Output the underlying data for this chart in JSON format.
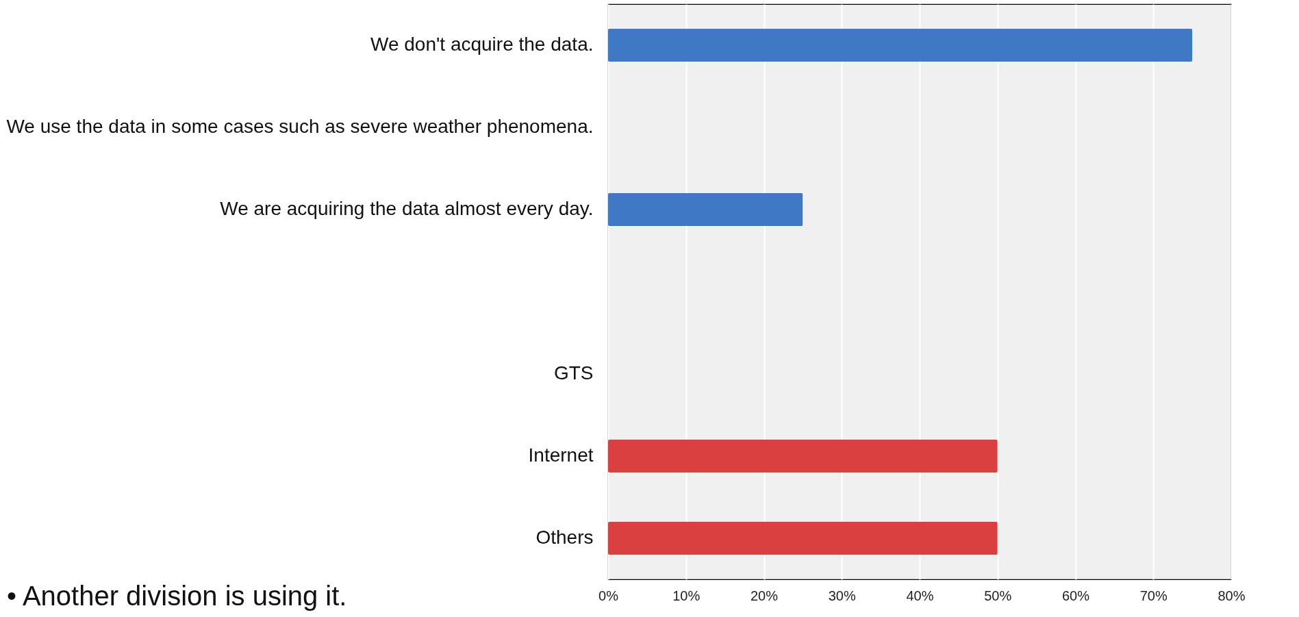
{
  "chart_data": {
    "type": "bar",
    "orientation": "horizontal",
    "categories": [
      "We don't acquire the data.",
      "We use the data in some cases such as severe weather phenomena.",
      "We are acquiring the data almost every day.",
      null,
      "GTS",
      "Internet",
      "Others"
    ],
    "values": [
      75,
      0,
      25,
      null,
      0,
      50,
      50
    ],
    "colors": [
      "#3f79c5",
      "#3f79c5",
      "#3f79c5",
      "#3f79c5",
      "#d9403f",
      "#d9403f",
      "#d9403f"
    ],
    "xlim": [
      0,
      80
    ],
    "xticks": [
      {
        "value": 0,
        "label": "0%"
      },
      {
        "value": 10,
        "label": "10%"
      },
      {
        "value": 20,
        "label": "20%"
      },
      {
        "value": 30,
        "label": "30%"
      },
      {
        "value": 40,
        "label": "40%"
      },
      {
        "value": 50,
        "label": "50%"
      },
      {
        "value": 60,
        "label": "60%"
      },
      {
        "value": 70,
        "label": "70%"
      },
      {
        "value": 80,
        "label": "80%"
      }
    ],
    "grid": "x",
    "annotations": [
      "• Another division is using it."
    ]
  }
}
